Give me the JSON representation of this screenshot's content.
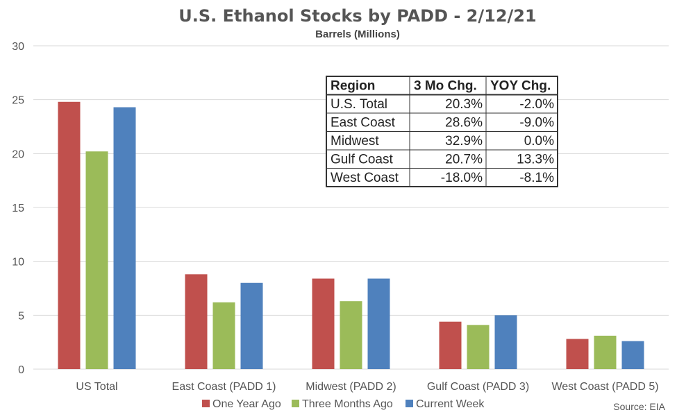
{
  "chart_data": {
    "type": "bar",
    "title": "U.S. Ethanol Stocks by PADD - 2/12/21",
    "subtitle": "Barrels (Millions)",
    "categories": [
      "US Total",
      "East Coast (PADD 1)",
      "Midwest (PADD 2)",
      "Gulf Coast (PADD 3)",
      "West Coast (PADD 5)"
    ],
    "series": [
      {
        "name": "One Year Ago",
        "color": "#C0504D",
        "values": [
          24.8,
          8.8,
          8.4,
          4.4,
          2.8
        ]
      },
      {
        "name": "Three Months Ago",
        "color": "#9BBB59",
        "values": [
          20.2,
          6.2,
          6.3,
          4.1,
          3.1
        ]
      },
      {
        "name": "Current Week",
        "color": "#4F81BD",
        "values": [
          24.3,
          8.0,
          8.4,
          5.0,
          2.6
        ]
      }
    ],
    "ylim": [
      0,
      30
    ],
    "yticks": [
      0,
      5,
      10,
      15,
      20,
      25,
      30
    ],
    "grid": true,
    "legend": "bottom",
    "source": "Source: EIA",
    "table": {
      "headers": [
        "Region",
        "3 Mo Chg.",
        "YOY Chg."
      ],
      "rows": [
        [
          "U.S. Total",
          "20.3%",
          "-2.0%"
        ],
        [
          "East Coast",
          "28.6%",
          "-9.0%"
        ],
        [
          "Midwest",
          "32.9%",
          "0.0%"
        ],
        [
          "Gulf Coast",
          "20.7%",
          "13.3%"
        ],
        [
          "West Coast",
          "-18.0%",
          "-8.1%"
        ]
      ]
    }
  }
}
